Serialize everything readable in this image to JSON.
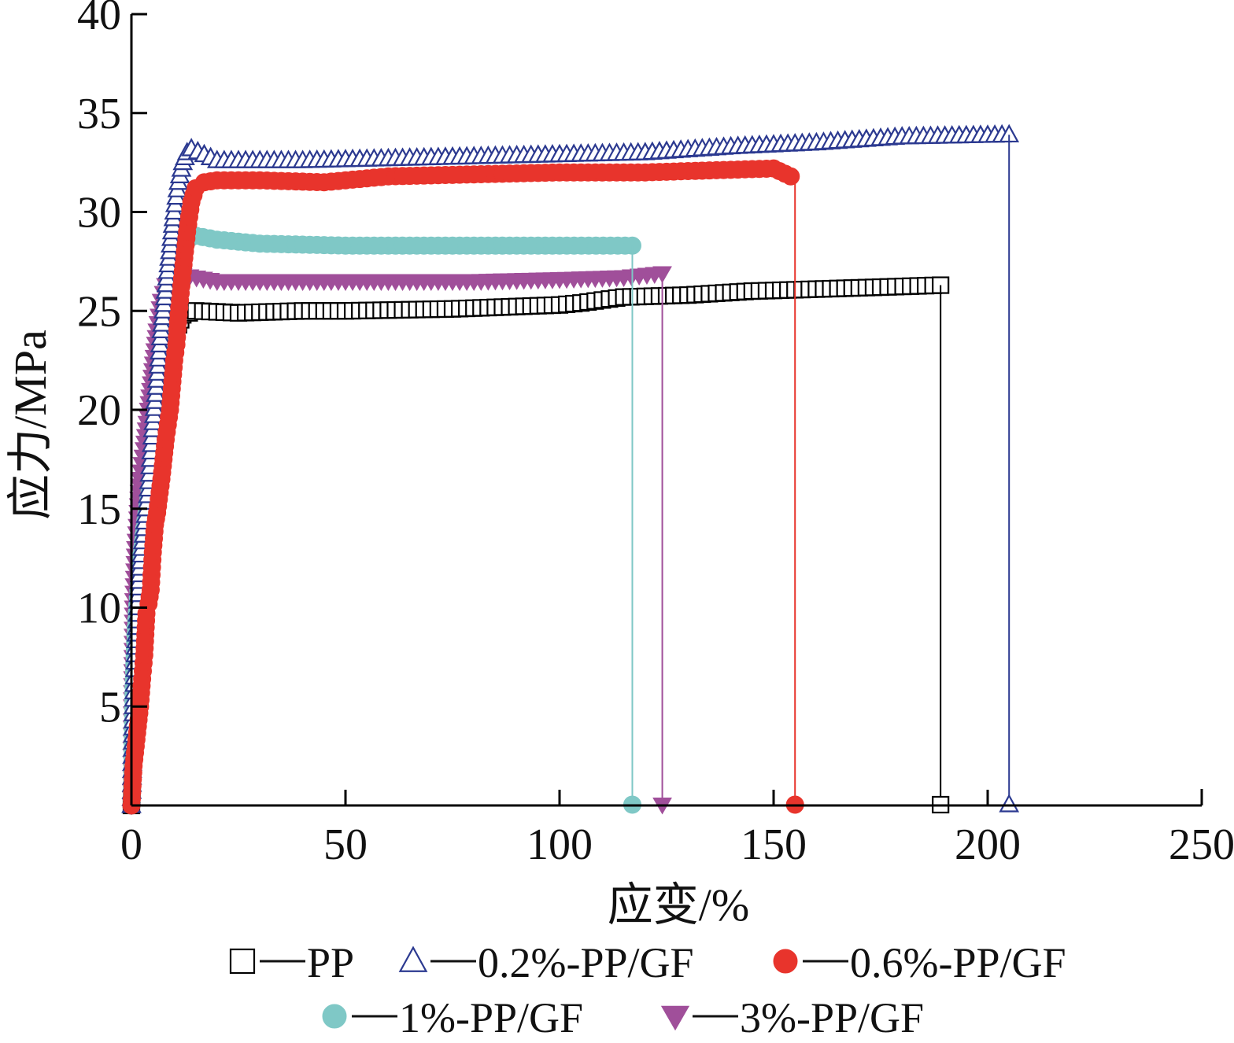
{
  "chart_data": {
    "type": "scatter",
    "xlabel": "应变/%",
    "ylabel": "应力/MPa",
    "xlim": [
      0,
      250
    ],
    "ylim": [
      0,
      40
    ],
    "x_ticks": [
      "0",
      "50",
      "100",
      "150",
      "200",
      "250"
    ],
    "y_ticks": [
      "5",
      "10",
      "15",
      "20",
      "25",
      "30",
      "35",
      "40"
    ],
    "grid": false,
    "legend_position": "bottom",
    "series": [
      {
        "name": "PP",
        "marker": "square-open",
        "color": "#000000",
        "points": [
          [
            0,
            0
          ],
          [
            0.5,
            3
          ],
          [
            1,
            6
          ],
          [
            1.5,
            8.5
          ],
          [
            2,
            10
          ],
          [
            3,
            12
          ],
          [
            4,
            14
          ],
          [
            5,
            16
          ],
          [
            6,
            17.5
          ],
          [
            7,
            19
          ],
          [
            8,
            21
          ],
          [
            9,
            22.5
          ],
          [
            10,
            23.5
          ],
          [
            11,
            24.3
          ],
          [
            12,
            24.8
          ],
          [
            15,
            25
          ],
          [
            25,
            24.9
          ],
          [
            40,
            25
          ],
          [
            50,
            25
          ],
          [
            75,
            25.1
          ],
          [
            100,
            25.3
          ],
          [
            105,
            25.4
          ],
          [
            115,
            25.7
          ],
          [
            130,
            25.8
          ],
          [
            145,
            26
          ],
          [
            160,
            26.1
          ],
          [
            175,
            26.2
          ],
          [
            189,
            26.3
          ]
        ],
        "failure_strain": 189
      },
      {
        "name": "0.2%-PP/GF",
        "marker": "triangle-up-open",
        "color": "#2b3990",
        "points": [
          [
            0,
            0
          ],
          [
            0.5,
            5
          ],
          [
            1,
            8
          ],
          [
            1.5,
            10
          ],
          [
            2,
            12
          ],
          [
            3,
            14
          ],
          [
            4,
            16
          ],
          [
            5,
            19
          ],
          [
            6,
            21.5
          ],
          [
            7,
            24
          ],
          [
            8,
            26
          ],
          [
            9,
            28
          ],
          [
            10,
            30
          ],
          [
            11,
            31.5
          ],
          [
            12,
            32.5
          ],
          [
            13,
            33
          ],
          [
            14,
            33.2
          ],
          [
            20,
            32.6
          ],
          [
            40,
            32.6
          ],
          [
            60,
            32.7
          ],
          [
            80,
            32.8
          ],
          [
            100,
            32.9
          ],
          [
            120,
            33
          ],
          [
            140,
            33.3
          ],
          [
            160,
            33.5
          ],
          [
            180,
            33.8
          ],
          [
            205,
            33.9
          ]
        ],
        "failure_strain": 205
      },
      {
        "name": "0.6%-PP/GF",
        "marker": "circle-filled",
        "color": "#e8342c",
        "points": [
          [
            0,
            0
          ],
          [
            0.5,
            2
          ],
          [
            1,
            3
          ],
          [
            2,
            5
          ],
          [
            2.5,
            6.4
          ],
          [
            3,
            7.6
          ],
          [
            3.5,
            9.7
          ],
          [
            4,
            10.2
          ],
          [
            4.5,
            10.9
          ],
          [
            5,
            12.8
          ],
          [
            5.5,
            14.2
          ],
          [
            6,
            14.8
          ],
          [
            7,
            16.5
          ],
          [
            8,
            18.5
          ],
          [
            9,
            20
          ],
          [
            10,
            22.5
          ],
          [
            10.5,
            23.3
          ],
          [
            11,
            24.8
          ],
          [
            12,
            27
          ],
          [
            13,
            29
          ],
          [
            14,
            30.5
          ],
          [
            15,
            31.2
          ],
          [
            17,
            31.5
          ],
          [
            20,
            31.6
          ],
          [
            30,
            31.6
          ],
          [
            45,
            31.5
          ],
          [
            60,
            31.8
          ],
          [
            80,
            31.9
          ],
          [
            100,
            32
          ],
          [
            120,
            32
          ],
          [
            135,
            32.1
          ],
          [
            150,
            32.2
          ],
          [
            154,
            31.8
          ]
        ],
        "failure_strain": 155
      },
      {
        "name": "1%-PP/GF",
        "marker": "circle-filled",
        "color": "#7fc8c6",
        "points": [
          [
            0,
            0
          ],
          [
            0.5,
            6
          ],
          [
            1,
            9
          ],
          [
            2,
            12
          ],
          [
            3,
            14
          ],
          [
            4,
            15.5
          ],
          [
            5,
            17
          ],
          [
            6,
            19
          ],
          [
            7,
            21
          ],
          [
            8,
            23
          ],
          [
            9,
            25
          ],
          [
            10,
            26.8
          ],
          [
            11,
            27.8
          ],
          [
            12,
            28.5
          ],
          [
            15,
            28.8
          ],
          [
            20,
            28.6
          ],
          [
            30,
            28.4
          ],
          [
            50,
            28.3
          ],
          [
            75,
            28.3
          ],
          [
            100,
            28.3
          ],
          [
            117,
            28.3
          ]
        ],
        "failure_strain": 117
      },
      {
        "name": "3%-PP/GF",
        "marker": "triangle-down-filled",
        "color": "#a04f9a",
        "points": [
          [
            0,
            0
          ],
          [
            0.5,
            10
          ],
          [
            1,
            13
          ],
          [
            1.5,
            14.5
          ],
          [
            2,
            16.5
          ],
          [
            3,
            18
          ],
          [
            4,
            20
          ],
          [
            5,
            22
          ],
          [
            6,
            24
          ],
          [
            7,
            25.5
          ],
          [
            8,
            26.3
          ],
          [
            9,
            26.7
          ],
          [
            12,
            26.8
          ],
          [
            20,
            26.5
          ],
          [
            40,
            26.5
          ],
          [
            60,
            26.5
          ],
          [
            80,
            26.5
          ],
          [
            100,
            26.6
          ],
          [
            115,
            26.7
          ],
          [
            124,
            26.9
          ]
        ],
        "failure_strain": 124
      }
    ]
  }
}
